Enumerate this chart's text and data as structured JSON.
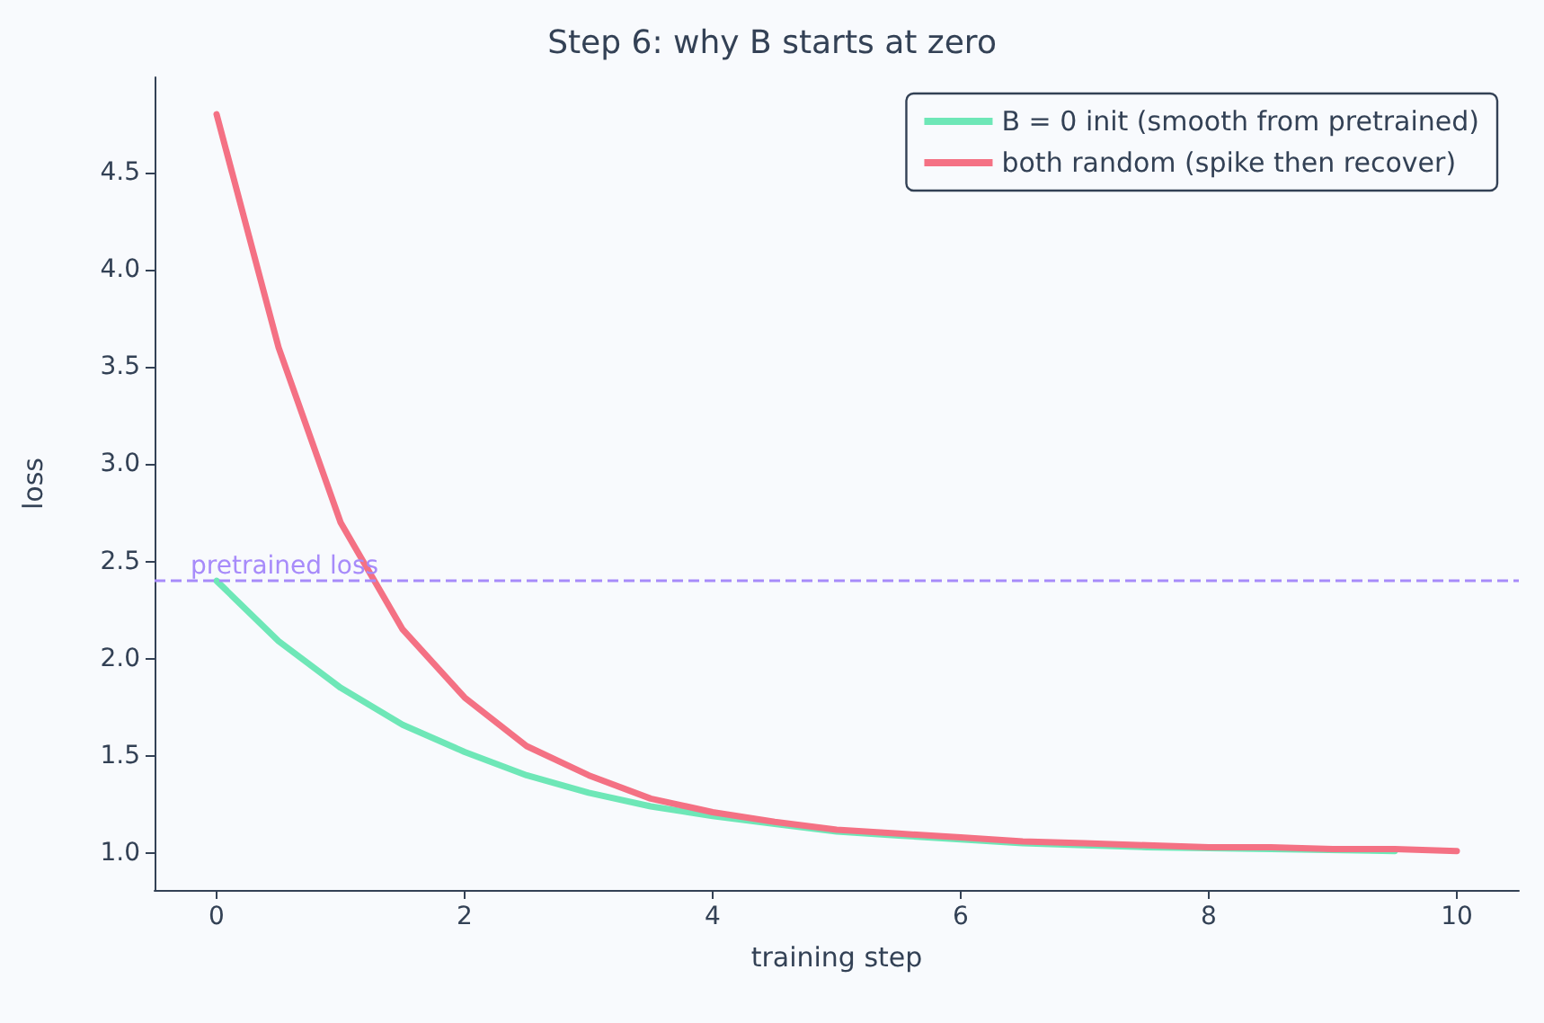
{
  "chart_data": {
    "type": "line",
    "title": "Step 6: why B starts at zero",
    "xlabel": "training step",
    "ylabel": "loss",
    "x": [
      0,
      0.5,
      1,
      1.5,
      2,
      2.5,
      3,
      3.5,
      4,
      4.5,
      5,
      5.5,
      6,
      6.5,
      7,
      7.5,
      8,
      8.5,
      9,
      9.5,
      10
    ],
    "series": [
      {
        "name": "B = 0 init (smooth from pretrained)",
        "color": "#6ee7b7",
        "values": [
          2.4,
          2.09,
          1.85,
          1.66,
          1.52,
          1.4,
          1.31,
          1.24,
          1.19,
          1.15,
          1.11,
          1.09,
          1.07,
          1.05,
          1.04,
          1.03,
          null,
          1.02,
          null,
          1.01,
          null
        ]
      },
      {
        "name": "both random (spike then recover)",
        "color": "#f47184",
        "values": [
          4.8,
          3.6,
          2.7,
          2.15,
          1.8,
          1.55,
          1.4,
          1.28,
          1.21,
          1.16,
          1.12,
          1.1,
          1.08,
          1.06,
          1.05,
          1.04,
          1.03,
          1.03,
          1.02,
          1.02,
          1.01
        ]
      }
    ],
    "xlim": [
      -0.5,
      10.5
    ],
    "xticks": [
      0,
      2,
      4,
      6,
      8,
      10
    ],
    "ylim": [
      0.81,
      4.99
    ],
    "yticks": [
      {
        "value": 1,
        "label": "1.0"
      },
      {
        "value": 1.5,
        "label": "1.5"
      },
      {
        "value": 2,
        "label": "2.0"
      },
      {
        "value": 2.5,
        "label": "2.5"
      },
      {
        "value": 3,
        "label": "3.0"
      },
      {
        "value": 3.5,
        "label": "3.5"
      },
      {
        "value": 4,
        "label": "4.0"
      },
      {
        "value": 4.5,
        "label": "4.5"
      }
    ],
    "ref_lines": [
      {
        "axis": "y",
        "value": 2.4,
        "label": "pretrained loss",
        "color": "#a78bfa",
        "line_style": "dashed"
      }
    ],
    "grid": false,
    "legend": "top right",
    "marker": "none",
    "line_style": "solid"
  }
}
